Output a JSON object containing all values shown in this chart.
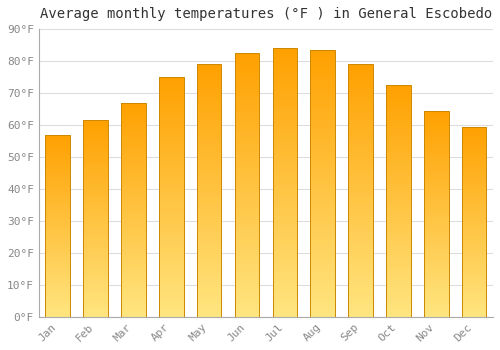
{
  "title": "Average monthly temperatures (°F ) in General Escobedo",
  "months": [
    "Jan",
    "Feb",
    "Mar",
    "Apr",
    "May",
    "Jun",
    "Jul",
    "Aug",
    "Sep",
    "Oct",
    "Nov",
    "Dec"
  ],
  "values": [
    57.0,
    61.5,
    67.0,
    75.0,
    79.0,
    82.5,
    84.0,
    83.5,
    79.0,
    72.5,
    64.5,
    59.5
  ],
  "bar_color_top": "#FFA500",
  "bar_color_bottom": "#FFE580",
  "bar_edge_color": "#CC8800",
  "background_color": "#FFFFFF",
  "grid_color": "#DDDDDD",
  "ylim": [
    0,
    90
  ],
  "yticks": [
    0,
    10,
    20,
    30,
    40,
    50,
    60,
    70,
    80,
    90
  ],
  "title_fontsize": 10,
  "tick_fontsize": 8,
  "tick_color": "#888888"
}
